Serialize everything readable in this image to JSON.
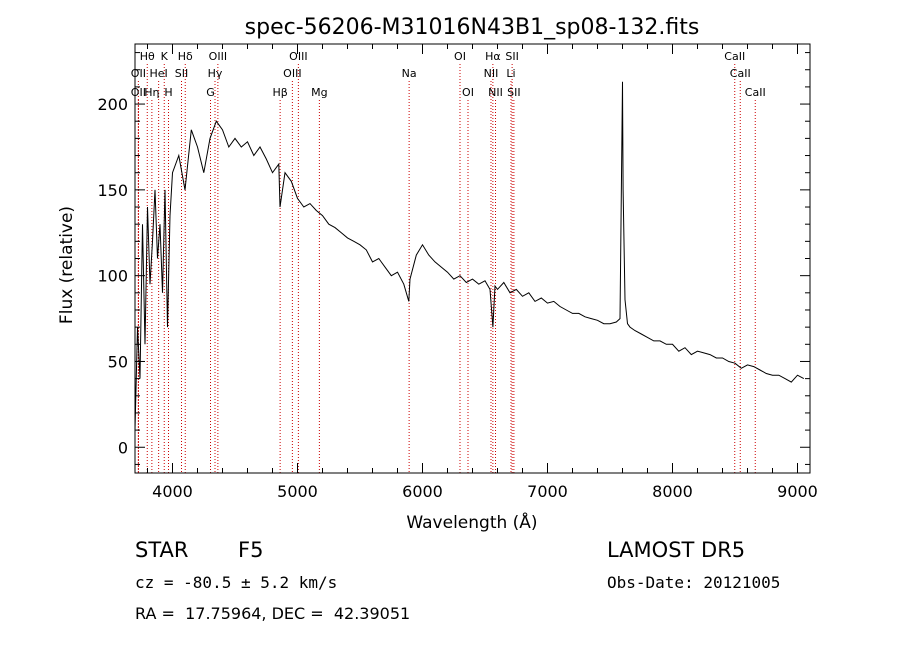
{
  "chart_data": {
    "type": "line",
    "title": "spec-56206-M31016N43B1_sp08-132.fits",
    "xlabel": "Wavelength (Å)",
    "ylabel": "Flux (relative)",
    "xlim": [
      3700,
      9100
    ],
    "ylim": [
      -15,
      235
    ],
    "xticks": [
      4000,
      5000,
      6000,
      7000,
      8000,
      9000
    ],
    "yticks": [
      0,
      50,
      100,
      150,
      200
    ],
    "grid": false,
    "line_color": "#000000",
    "marker_line_color": "#cc0000",
    "series": [
      {
        "x": [
          3700,
          3720,
          3740,
          3760,
          3780,
          3800,
          3820,
          3840,
          3860,
          3880,
          3900,
          3920,
          3940,
          3960,
          3980,
          4000,
          4050,
          4100,
          4150,
          4200,
          4250,
          4300,
          4350,
          4400,
          4450,
          4500,
          4550,
          4600,
          4650,
          4700,
          4750,
          4800,
          4850,
          4860,
          4880,
          4900,
          4950,
          5000,
          5050,
          5100,
          5150,
          5200,
          5250,
          5300,
          5350,
          5400,
          5450,
          5500,
          5550,
          5600,
          5650,
          5700,
          5750,
          5800,
          5850,
          5890,
          5900,
          5950,
          6000,
          6050,
          6100,
          6150,
          6200,
          6250,
          6300,
          6350,
          6400,
          6450,
          6500,
          6540,
          6563,
          6580,
          6600,
          6650,
          6700,
          6750,
          6800,
          6850,
          6900,
          6950,
          7000,
          7050,
          7100,
          7150,
          7200,
          7250,
          7300,
          7350,
          7400,
          7450,
          7500,
          7550,
          7580,
          7600,
          7605,
          7620,
          7640,
          7660,
          7700,
          7750,
          7800,
          7850,
          7900,
          7950,
          8000,
          8050,
          8100,
          8150,
          8200,
          8250,
          8300,
          8350,
          8400,
          8450,
          8500,
          8550,
          8600,
          8650,
          8700,
          8750,
          8800,
          8850,
          8900,
          8950,
          9000,
          9050
        ],
        "y": [
          10,
          70,
          40,
          130,
          60,
          140,
          95,
          120,
          150,
          110,
          130,
          90,
          150,
          70,
          135,
          160,
          170,
          150,
          185,
          175,
          160,
          180,
          190,
          185,
          175,
          180,
          175,
          178,
          170,
          175,
          168,
          160,
          165,
          140,
          150,
          160,
          155,
          145,
          140,
          142,
          138,
          135,
          130,
          128,
          125,
          122,
          120,
          118,
          115,
          108,
          110,
          105,
          100,
          102,
          95,
          85,
          98,
          112,
          118,
          112,
          108,
          105,
          102,
          98,
          100,
          96,
          98,
          95,
          97,
          92,
          70,
          94,
          92,
          96,
          90,
          92,
          88,
          90,
          85,
          87,
          84,
          85,
          82,
          80,
          78,
          78,
          76,
          75,
          74,
          72,
          72,
          73,
          75,
          213,
          150,
          86,
          72,
          70,
          68,
          66,
          64,
          62,
          62,
          60,
          60,
          56,
          58,
          54,
          56,
          55,
          54,
          52,
          52,
          50,
          49,
          46,
          48,
          47,
          45,
          43,
          42,
          42,
          40,
          38,
          42,
          40
        ]
      }
    ],
    "spectral_lines": [
      {
        "label": "Hθ",
        "x": 3798,
        "row": 0
      },
      {
        "label": "K",
        "x": 3934,
        "row": 0
      },
      {
        "label": "Hδ",
        "x": 4102,
        "row": 0
      },
      {
        "label": "OIII",
        "x": 4363,
        "row": 0
      },
      {
        "label": "OIII",
        "x": 5007,
        "row": 0
      },
      {
        "label": "OI",
        "x": 6300,
        "row": 0
      },
      {
        "label": "Hα",
        "x": 6563,
        "row": 0
      },
      {
        "label": "SII",
        "x": 6717,
        "row": 0
      },
      {
        "label": "CaII",
        "x": 8498,
        "row": 0
      },
      {
        "label": "OII",
        "x": 3727,
        "row": 1
      },
      {
        "label": "HeI",
        "x": 3889,
        "row": 1
      },
      {
        "label": "SII",
        "x": 4072,
        "row": 1
      },
      {
        "label": "Hγ",
        "x": 4340,
        "row": 1
      },
      {
        "label": "OIII",
        "x": 4959,
        "row": 1
      },
      {
        "label": "Na",
        "x": 5893,
        "row": 1
      },
      {
        "label": "NII",
        "x": 6548,
        "row": 1
      },
      {
        "label": "Li",
        "x": 6708,
        "row": 1
      },
      {
        "label": "CaII",
        "x": 8542,
        "row": 1
      },
      {
        "label": "OII",
        "x": 3727,
        "row": 2
      },
      {
        "label": "Hη",
        "x": 3835,
        "row": 2
      },
      {
        "label": "H",
        "x": 3968,
        "row": 2
      },
      {
        "label": "G",
        "x": 4304,
        "row": 2
      },
      {
        "label": "Hβ",
        "x": 4861,
        "row": 2
      },
      {
        "label": "Mg",
        "x": 5175,
        "row": 2
      },
      {
        "label": "OI",
        "x": 6364,
        "row": 2
      },
      {
        "label": "NII",
        "x": 6584,
        "row": 2
      },
      {
        "label": "SII",
        "x": 6731,
        "row": 2
      },
      {
        "label": "CaII",
        "x": 8662,
        "row": 2
      }
    ]
  },
  "info": {
    "class": "STAR",
    "subclass": "F5",
    "survey": "LAMOST DR5",
    "cz": "cz = -80.5 ± 5.2 km/s",
    "obs_date": "Obs-Date: 20121005",
    "coords": "RA =  17.75964, DEC =  42.39051"
  }
}
